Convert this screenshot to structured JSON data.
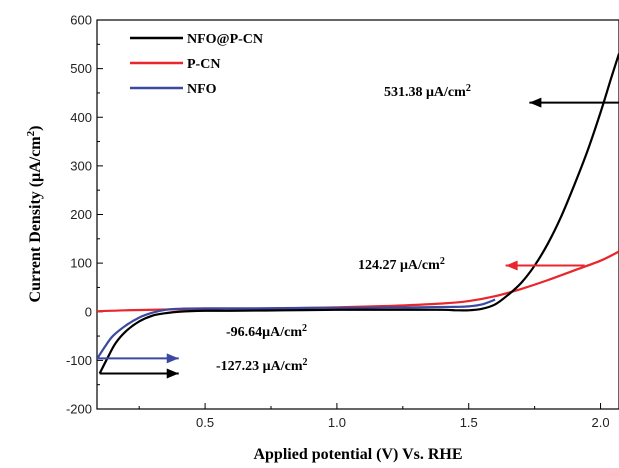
{
  "chart_data": {
    "type": "line",
    "xlabel": "Applied potential (V) Vs. RHE",
    "ylabel": "Current Density (μA/cm²)",
    "xlim": [
      0.09,
      2.07
    ],
    "ylim": [
      -200,
      600
    ],
    "xticks": [
      0.5,
      1.0,
      1.5,
      2.0
    ],
    "xtick_labels": [
      "0.5",
      "1.0",
      "1.5",
      "2.0"
    ],
    "yticks": [
      -200,
      -100,
      0,
      100,
      200,
      300,
      400,
      500,
      600
    ],
    "ytick_labels": [
      "-200",
      "-100",
      "0",
      "100",
      "200",
      "300",
      "400",
      "500",
      "600"
    ],
    "legend_position": "top-left",
    "series": [
      {
        "name": "NFO@P-CN",
        "color": "#000000",
        "x": [
          0.1,
          0.13,
          0.16,
          0.2,
          0.25,
          0.3,
          0.35,
          0.4,
          0.5,
          0.6,
          0.8,
          1.0,
          1.2,
          1.4,
          1.45,
          1.5,
          1.55,
          1.6,
          1.65,
          1.7,
          1.75,
          1.8,
          1.85,
          1.9,
          1.95,
          2.0,
          2.04,
          2.07
        ],
        "y": [
          -127,
          -95,
          -65,
          -40,
          -20,
          -8,
          -3,
          0,
          2,
          2,
          3,
          4,
          4,
          4,
          3,
          3,
          6,
          15,
          35,
          60,
          95,
          140,
          195,
          260,
          330,
          410,
          480,
          531
        ]
      },
      {
        "name": "P-CN",
        "color": "#e8262b",
        "x": [
          0.09,
          0.2,
          0.4,
          0.6,
          0.8,
          1.0,
          1.2,
          1.4,
          1.5,
          1.6,
          1.7,
          1.8,
          1.9,
          2.0,
          2.07
        ],
        "y": [
          1,
          3,
          5,
          6,
          7,
          9,
          12,
          17,
          22,
          32,
          47,
          65,
          85,
          105,
          124
        ]
      },
      {
        "name": "NFO",
        "color": "#3b4aa0",
        "x": [
          0.09,
          0.12,
          0.15,
          0.2,
          0.25,
          0.3,
          0.35,
          0.4,
          0.5,
          0.7,
          0.9,
          1.1,
          1.3,
          1.45,
          1.5,
          1.55,
          1.6
        ],
        "y": [
          -97,
          -72,
          -50,
          -28,
          -12,
          -2,
          4,
          6,
          7,
          7,
          8,
          8,
          9,
          10,
          11,
          15,
          25
        ]
      }
    ],
    "annotations": [
      {
        "text": "531.38 μA/cm",
        "sup": "2",
        "color": "#000000",
        "arrow_from": [
          2.07,
          430
        ],
        "arrow_to": [
          1.73,
          430
        ]
      },
      {
        "text": "124.27 μA/cm",
        "sup": "2",
        "color": "#e8262b",
        "arrow_from": [
          1.94,
          95
        ],
        "arrow_to": [
          1.64,
          95
        ]
      },
      {
        "text": "-96.64μA/cm",
        "sup": "2",
        "color": "#3b4aa0",
        "arrow_from": [
          0.09,
          -96
        ],
        "arrow_to": [
          0.4,
          -96
        ]
      },
      {
        "text": "-127.23 μA/cm",
        "sup": "2",
        "color": "#000000",
        "arrow_from": [
          0.1,
          -127
        ],
        "arrow_to": [
          0.4,
          -127
        ]
      }
    ]
  }
}
